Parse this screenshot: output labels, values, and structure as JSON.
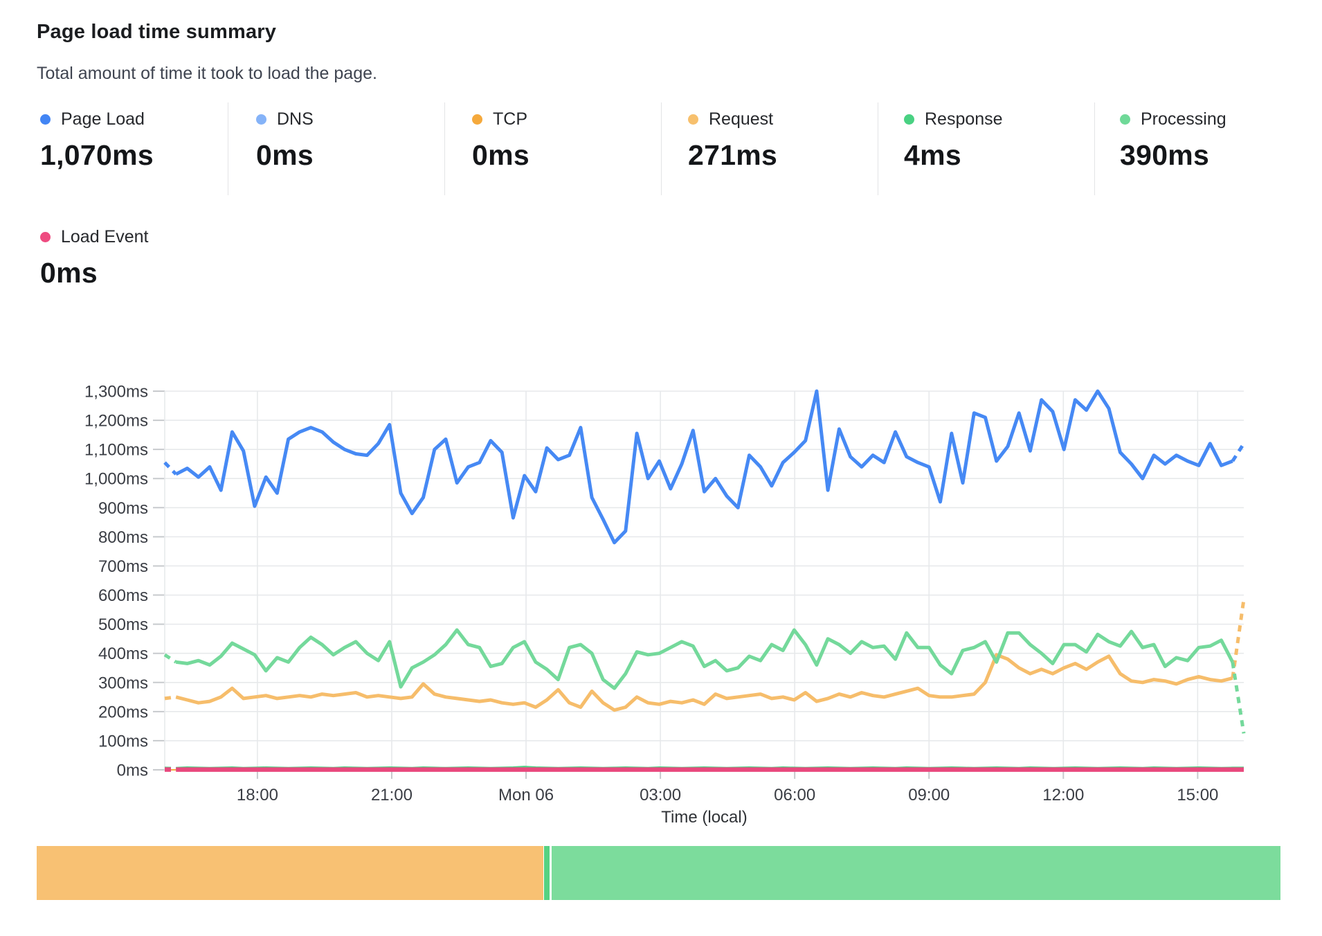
{
  "header": {
    "title": "Page load time summary",
    "subtitle": "Total amount of time it took to load the page."
  },
  "stats": [
    {
      "label": "Page Load",
      "value": "1,070ms",
      "color": "#4285f4"
    },
    {
      "label": "DNS",
      "value": "0ms",
      "color": "#85b3f8"
    },
    {
      "label": "TCP",
      "value": "0ms",
      "color": "#f5a93c"
    },
    {
      "label": "Request",
      "value": "271ms",
      "color": "#f7c06d"
    },
    {
      "label": "Response",
      "value": "4ms",
      "color": "#49d182"
    },
    {
      "label": "Processing",
      "value": "390ms",
      "color": "#6fd998"
    }
  ],
  "stats_row2": [
    {
      "label": "Load Event",
      "value": "0ms",
      "color": "#ee4b80"
    }
  ],
  "chart_data": {
    "type": "line",
    "title": "Page load time summary",
    "xlabel": "Time (local)",
    "ylabel": "",
    "y_unit": "ms",
    "ylim": [
      0,
      1300
    ],
    "y_step": 100,
    "y_tick_labels": [
      "0ms",
      "100ms",
      "200ms",
      "300ms",
      "400ms",
      "500ms",
      "600ms",
      "700ms",
      "800ms",
      "900ms",
      "1,000ms",
      "1,100ms",
      "1,200ms",
      "1,300ms"
    ],
    "x_tick_labels": [
      "18:00",
      "21:00",
      "Mon 06",
      "03:00",
      "06:00",
      "09:00",
      "12:00",
      "15:00"
    ],
    "x_tick_hours": [
      2.07,
      5.07,
      8.07,
      11.07,
      14.07,
      17.07,
      20.07,
      23.07
    ],
    "x_span_hours": 24.1,
    "grid": true,
    "legend_position": "top",
    "series": [
      {
        "name": "DNS",
        "color": "#85b3f8",
        "width": 2,
        "constant": 0,
        "dash_start": false,
        "dash_end": false
      },
      {
        "name": "TCP",
        "color": "#f5a93c",
        "width": 2,
        "constant": 0,
        "dash_start": false,
        "dash_end": false
      },
      {
        "name": "Response",
        "color": "#4fd286",
        "width": 5,
        "dash_start": true,
        "dash_end": false,
        "values": [
          5,
          4,
          6,
          5,
          4,
          5,
          6,
          4,
          5,
          6,
          5,
          4,
          5,
          6,
          5,
          4,
          6,
          5,
          4,
          5,
          6,
          5,
          4,
          6,
          5,
          4,
          5,
          6,
          5,
          4,
          5,
          6,
          8,
          6,
          5,
          4,
          5,
          6,
          5,
          4,
          5,
          6,
          5,
          4,
          6,
          5,
          4,
          5,
          6,
          5,
          4,
          5,
          6,
          5,
          4,
          6,
          5,
          4,
          5,
          6,
          5,
          4,
          5,
          6,
          5,
          4,
          6,
          5,
          4,
          5,
          6,
          5,
          4,
          5,
          6,
          5,
          4,
          6,
          5,
          4,
          5,
          6,
          5,
          4,
          5,
          6,
          5,
          4,
          6,
          5,
          4,
          5,
          6,
          5,
          4,
          5,
          5
        ]
      },
      {
        "name": "Request",
        "color": "#f6bd6b",
        "width": 5,
        "dash_start": true,
        "dash_end": true,
        "values": [
          245,
          250,
          240,
          230,
          235,
          250,
          280,
          245,
          250,
          255,
          245,
          250,
          255,
          250,
          260,
          255,
          260,
          265,
          250,
          255,
          250,
          245,
          250,
          295,
          260,
          250,
          245,
          240,
          235,
          240,
          230,
          225,
          230,
          215,
          240,
          275,
          230,
          215,
          270,
          230,
          205,
          215,
          250,
          230,
          225,
          235,
          230,
          240,
          225,
          260,
          245,
          250,
          255,
          260,
          245,
          250,
          240,
          265,
          235,
          245,
          260,
          250,
          265,
          255,
          250,
          260,
          270,
          280,
          255,
          250,
          250,
          255,
          260,
          300,
          395,
          380,
          350,
          330,
          345,
          330,
          350,
          365,
          345,
          370,
          390,
          330,
          305,
          300,
          310,
          305,
          295,
          310,
          320,
          310,
          305,
          315,
          585
        ]
      },
      {
        "name": "Processing",
        "color": "#74d99b",
        "width": 5,
        "dash_start": true,
        "dash_end": true,
        "values": [
          395,
          370,
          365,
          375,
          360,
          390,
          435,
          415,
          395,
          340,
          385,
          370,
          420,
          455,
          430,
          395,
          420,
          440,
          400,
          375,
          440,
          285,
          350,
          370,
          395,
          430,
          480,
          430,
          420,
          355,
          365,
          420,
          440,
          370,
          345,
          310,
          420,
          430,
          400,
          310,
          280,
          330,
          405,
          395,
          400,
          420,
          440,
          425,
          355,
          375,
          340,
          350,
          390,
          375,
          430,
          410,
          480,
          430,
          360,
          450,
          430,
          400,
          440,
          420,
          425,
          380,
          470,
          420,
          420,
          360,
          330,
          410,
          420,
          440,
          370,
          470,
          470,
          430,
          400,
          365,
          430,
          430,
          405,
          465,
          440,
          425,
          475,
          420,
          430,
          355,
          385,
          375,
          420,
          425,
          445,
          370,
          125
        ]
      },
      {
        "name": "Page Load",
        "color": "#4689f4",
        "width": 5,
        "dash_start": true,
        "dash_end": true,
        "values": [
          1055,
          1015,
          1035,
          1005,
          1040,
          960,
          1160,
          1095,
          905,
          1005,
          950,
          1135,
          1160,
          1175,
          1160,
          1125,
          1100,
          1085,
          1080,
          1120,
          1185,
          950,
          880,
          935,
          1100,
          1135,
          985,
          1040,
          1055,
          1130,
          1090,
          865,
          1010,
          955,
          1105,
          1065,
          1080,
          1175,
          935,
          860,
          780,
          820,
          1155,
          1000,
          1060,
          965,
          1050,
          1165,
          955,
          1000,
          940,
          900,
          1080,
          1040,
          975,
          1055,
          1090,
          1130,
          1300,
          960,
          1170,
          1075,
          1040,
          1080,
          1055,
          1160,
          1075,
          1055,
          1040,
          920,
          1155,
          985,
          1225,
          1210,
          1060,
          1110,
          1225,
          1095,
          1270,
          1230,
          1100,
          1270,
          1235,
          1300,
          1240,
          1090,
          1050,
          1000,
          1080,
          1050,
          1080,
          1060,
          1045,
          1120,
          1045,
          1060,
          1120
        ]
      },
      {
        "name": "Load Event",
        "color": "#e9487d",
        "width": 6.5,
        "constant": 1,
        "dash_start": true,
        "dash_end": false
      }
    ]
  },
  "bottom_bar": {
    "segments": [
      {
        "status": "degraded",
        "color": "#f8c173",
        "percent": 40.7
      },
      {
        "status": "passing",
        "color": "#57d282",
        "percent": 0.55
      },
      {
        "status": "passing",
        "color": "#7cdc9c",
        "percent": 58.45
      }
    ]
  }
}
